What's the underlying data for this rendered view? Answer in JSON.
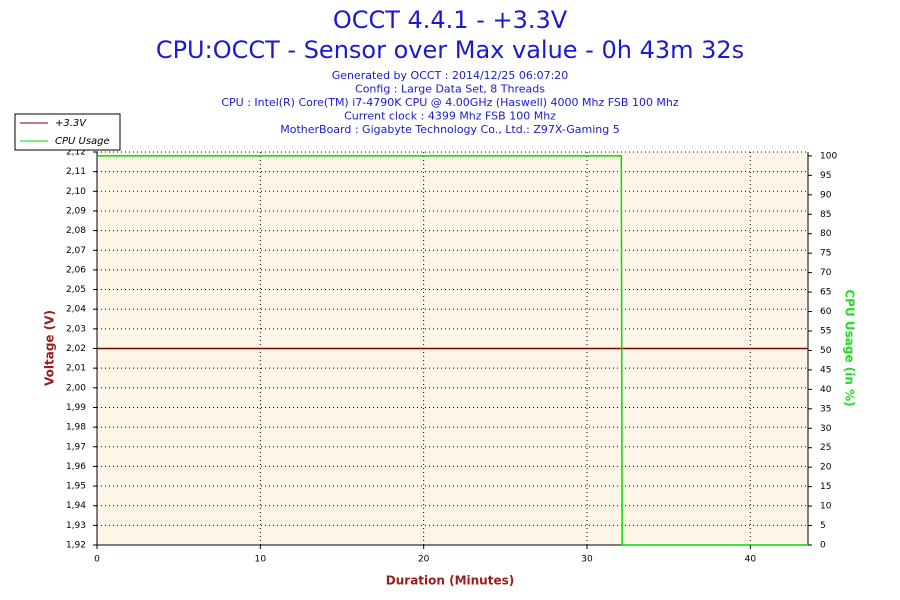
{
  "chart_data": {
    "type": "line",
    "title": "OCCT 4.4.1 - +3.3V",
    "subtitle": "CPU:OCCT - Sensor over Max value - 0h 43m 32s",
    "info": [
      "Generated by OCCT : 2014/12/25 06:07:20",
      "Config : Large Data Set, 8 Threads",
      "CPU : Intel(R) Core(TM) i7-4790K CPU @ 4.00GHz (Haswell) 4000 Mhz FSB 100 Mhz",
      "Current clock : 4399 Mhz FSB 100 Mhz",
      "MotherBoard : Gigabyte Technology Co., Ltd.: Z97X-Gaming 5"
    ],
    "x_label": "Duration (Minutes)",
    "y_label": "Voltage (V)",
    "y2_label": "CPU Usage (in %)",
    "x": [
      0,
      32.1,
      32.15,
      43.53
    ],
    "series": [
      {
        "name": "+3.3V",
        "color": "#800000",
        "values": [
          2.02,
          2.02,
          2.02,
          2.02
        ]
      },
      {
        "name": "CPU Usage",
        "color": "#00dd00",
        "axis": "y2",
        "values": [
          100,
          100,
          0,
          0
        ]
      }
    ],
    "xlim": [
      0,
      43.53
    ],
    "xticks": [
      0,
      10,
      20,
      30,
      40
    ],
    "ylim": [
      1.92,
      2.12
    ],
    "yticks": [
      {
        "value": 1.92,
        "label": "1,92"
      },
      {
        "value": 1.93,
        "label": "1,93"
      },
      {
        "value": 1.94,
        "label": "1,94"
      },
      {
        "value": 1.95,
        "label": "1,95"
      },
      {
        "value": 1.96,
        "label": "1,96"
      },
      {
        "value": 1.97,
        "label": "1,97"
      },
      {
        "value": 1.98,
        "label": "1,98"
      },
      {
        "value": 1.99,
        "label": "1,99"
      },
      {
        "value": 2,
        "label": "2,00"
      },
      {
        "value": 2.01,
        "label": "2,01"
      },
      {
        "value": 2.02,
        "label": "2,02"
      },
      {
        "value": 2.03,
        "label": "2,03"
      },
      {
        "value": 2.04,
        "label": "2,04"
      },
      {
        "value": 2.05,
        "label": "2,05"
      },
      {
        "value": 2.06,
        "label": "2,06"
      },
      {
        "value": 2.07,
        "label": "2,07"
      },
      {
        "value": 2.08,
        "label": "2,08"
      },
      {
        "value": 2.09,
        "label": "2,09"
      },
      {
        "value": 2.1,
        "label": "2,10"
      },
      {
        "value": 2.11,
        "label": "2,11"
      },
      {
        "value": 2.12,
        "label": "2,12"
      }
    ],
    "y2lim": [
      0,
      101
    ],
    "y2ticks": [
      0,
      5,
      10,
      15,
      20,
      25,
      30,
      35,
      40,
      45,
      50,
      55,
      60,
      65,
      70,
      75,
      80,
      85,
      90,
      95,
      100
    ],
    "grid": true,
    "legend": "top-left",
    "background": "#fdf6e8"
  }
}
